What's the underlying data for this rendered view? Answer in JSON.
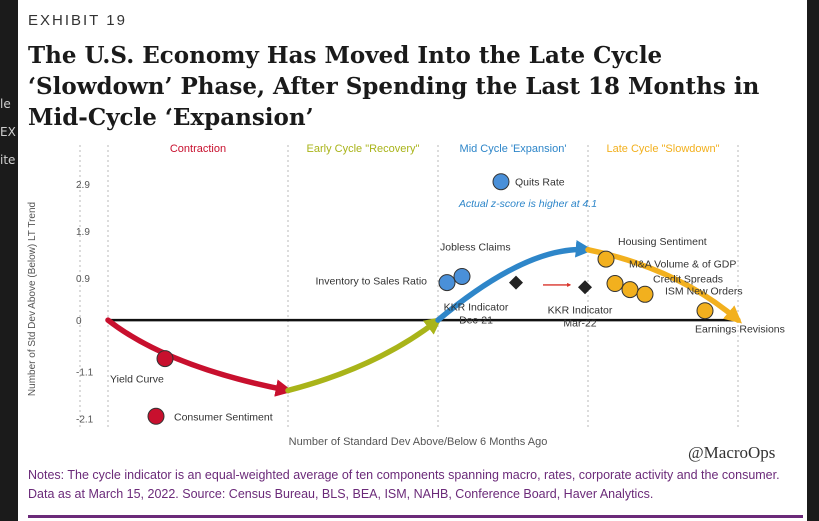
{
  "exhibit": "EXHIBIT 19",
  "title_lines": [
    "The U.S. Economy Has Moved Into the Late Cycle",
    "‘Slowdown’ Phase, After Spending the Last 18 Months in",
    "Mid-Cycle ‘Expansion’"
  ],
  "background_fragments": [
    "le",
    "EX",
    "ite"
  ],
  "handle": "@MacroOps",
  "notes": "Notes: The cycle indicator is an equal-weighted average of ten components spanning macro, rates, corporate activity and the consumer. Data as at March 15, 2022. Source: Census Bureau, BLS, BEA, ISM, NAHB, Conference Board, Haver Analytics.",
  "colors": {
    "contraction": "#c8102e",
    "recovery": "#a9b419",
    "expansion": "#2e86c9",
    "slowdown": "#f2b01e",
    "quits_marker": "#4a90d9",
    "notes_text": "#6b2a79"
  },
  "chart_data": {
    "type": "scatter",
    "ylabel": "Number of Std Dev Above (Below) LT Trend",
    "xlabel": "Number of Standard Dev Above/Below 6 Months Ago",
    "y_ticks": [
      {
        "value": 2.9,
        "label": "2.9"
      },
      {
        "value": 1.9,
        "label": "1.9"
      },
      {
        "value": 0.9,
        "label": "0.9"
      },
      {
        "value": 0,
        "label": "0"
      },
      {
        "value": -1.1,
        "label": "-1.1"
      },
      {
        "value": -2.1,
        "label": "-2.1"
      }
    ],
    "ylim": [
      -2.3,
      3.2
    ],
    "xlim": [
      0,
      11
    ],
    "grid": false,
    "phases": [
      {
        "label": "Contraction",
        "color": "#c8102e",
        "x_start": 0,
        "x_end": 3
      },
      {
        "label": "Early Cycle \"Recovery\"",
        "color": "#a9b419",
        "x_start": 3,
        "x_end": 5.5
      },
      {
        "label": "Mid Cycle 'Expansion'",
        "color": "#2e86c9",
        "x_start": 5.5,
        "x_end": 8
      },
      {
        "label": "Late Cycle \"Slowdown\"",
        "color": "#f2b01e",
        "x_start": 8,
        "x_end": 10.5
      }
    ],
    "points": [
      {
        "label": "Quits Rate",
        "x": 6.55,
        "y": 2.95,
        "color": "#4a90d9",
        "shape": "circle"
      },
      {
        "label": "Jobless Claims",
        "x": 5.9,
        "y": 0.93,
        "color": "#4a90d9",
        "shape": "circle"
      },
      {
        "label": "Inventory to Sales Ratio",
        "x": 5.65,
        "y": 0.8,
        "color": "#4a90d9",
        "shape": "circle"
      },
      {
        "label": "KKR Indicator Dec-21",
        "x": 6.8,
        "y": 0.8,
        "color": "#222222",
        "shape": "diamond"
      },
      {
        "label": "KKR Indicator Mar-22",
        "x": 7.95,
        "y": 0.7,
        "color": "#222222",
        "shape": "diamond"
      },
      {
        "label": "Housing Sentiment",
        "x": 8.3,
        "y": 1.3,
        "color": "#f2b01e",
        "shape": "circle"
      },
      {
        "label": "M&A Volume & of GDP",
        "x": 8.45,
        "y": 0.78,
        "color": "#f2b01e",
        "shape": "circle"
      },
      {
        "label": "Credit Spreads",
        "x": 8.7,
        "y": 0.65,
        "color": "#f2b01e",
        "shape": "circle"
      },
      {
        "label": "ISM New Orders",
        "x": 8.95,
        "y": 0.55,
        "color": "#f2b01e",
        "shape": "circle"
      },
      {
        "label": "Earnings Revisions",
        "x": 9.95,
        "y": 0.2,
        "color": "#f2b01e",
        "shape": "circle"
      },
      {
        "label": "Yield Curve",
        "x": 0.95,
        "y": -0.82,
        "color": "#c8102e",
        "shape": "circle"
      },
      {
        "label": "Consumer Sentiment",
        "x": 0.8,
        "y": -2.05,
        "color": "#c8102e",
        "shape": "circle"
      }
    ],
    "annotations": [
      {
        "text": "Actual z-score is higher at 4.1",
        "x": 7.0,
        "y": 2.5
      }
    ],
    "curve_segments": [
      {
        "color": "#c8102e",
        "points": [
          [
            0,
            0
          ],
          [
            1.0,
            -1.0
          ],
          [
            3.0,
            -1.5
          ]
        ]
      },
      {
        "color": "#a9b419",
        "points": [
          [
            3.0,
            -1.5
          ],
          [
            4.5,
            -1.0
          ],
          [
            5.5,
            0
          ]
        ]
      },
      {
        "color": "#2e86c9",
        "points": [
          [
            5.5,
            0
          ],
          [
            7.0,
            1.6
          ],
          [
            8.0,
            1.5
          ]
        ]
      },
      {
        "color": "#f2b01e",
        "points": [
          [
            8.0,
            1.5
          ],
          [
            9.5,
            1.1
          ],
          [
            10.5,
            0
          ]
        ]
      }
    ]
  }
}
